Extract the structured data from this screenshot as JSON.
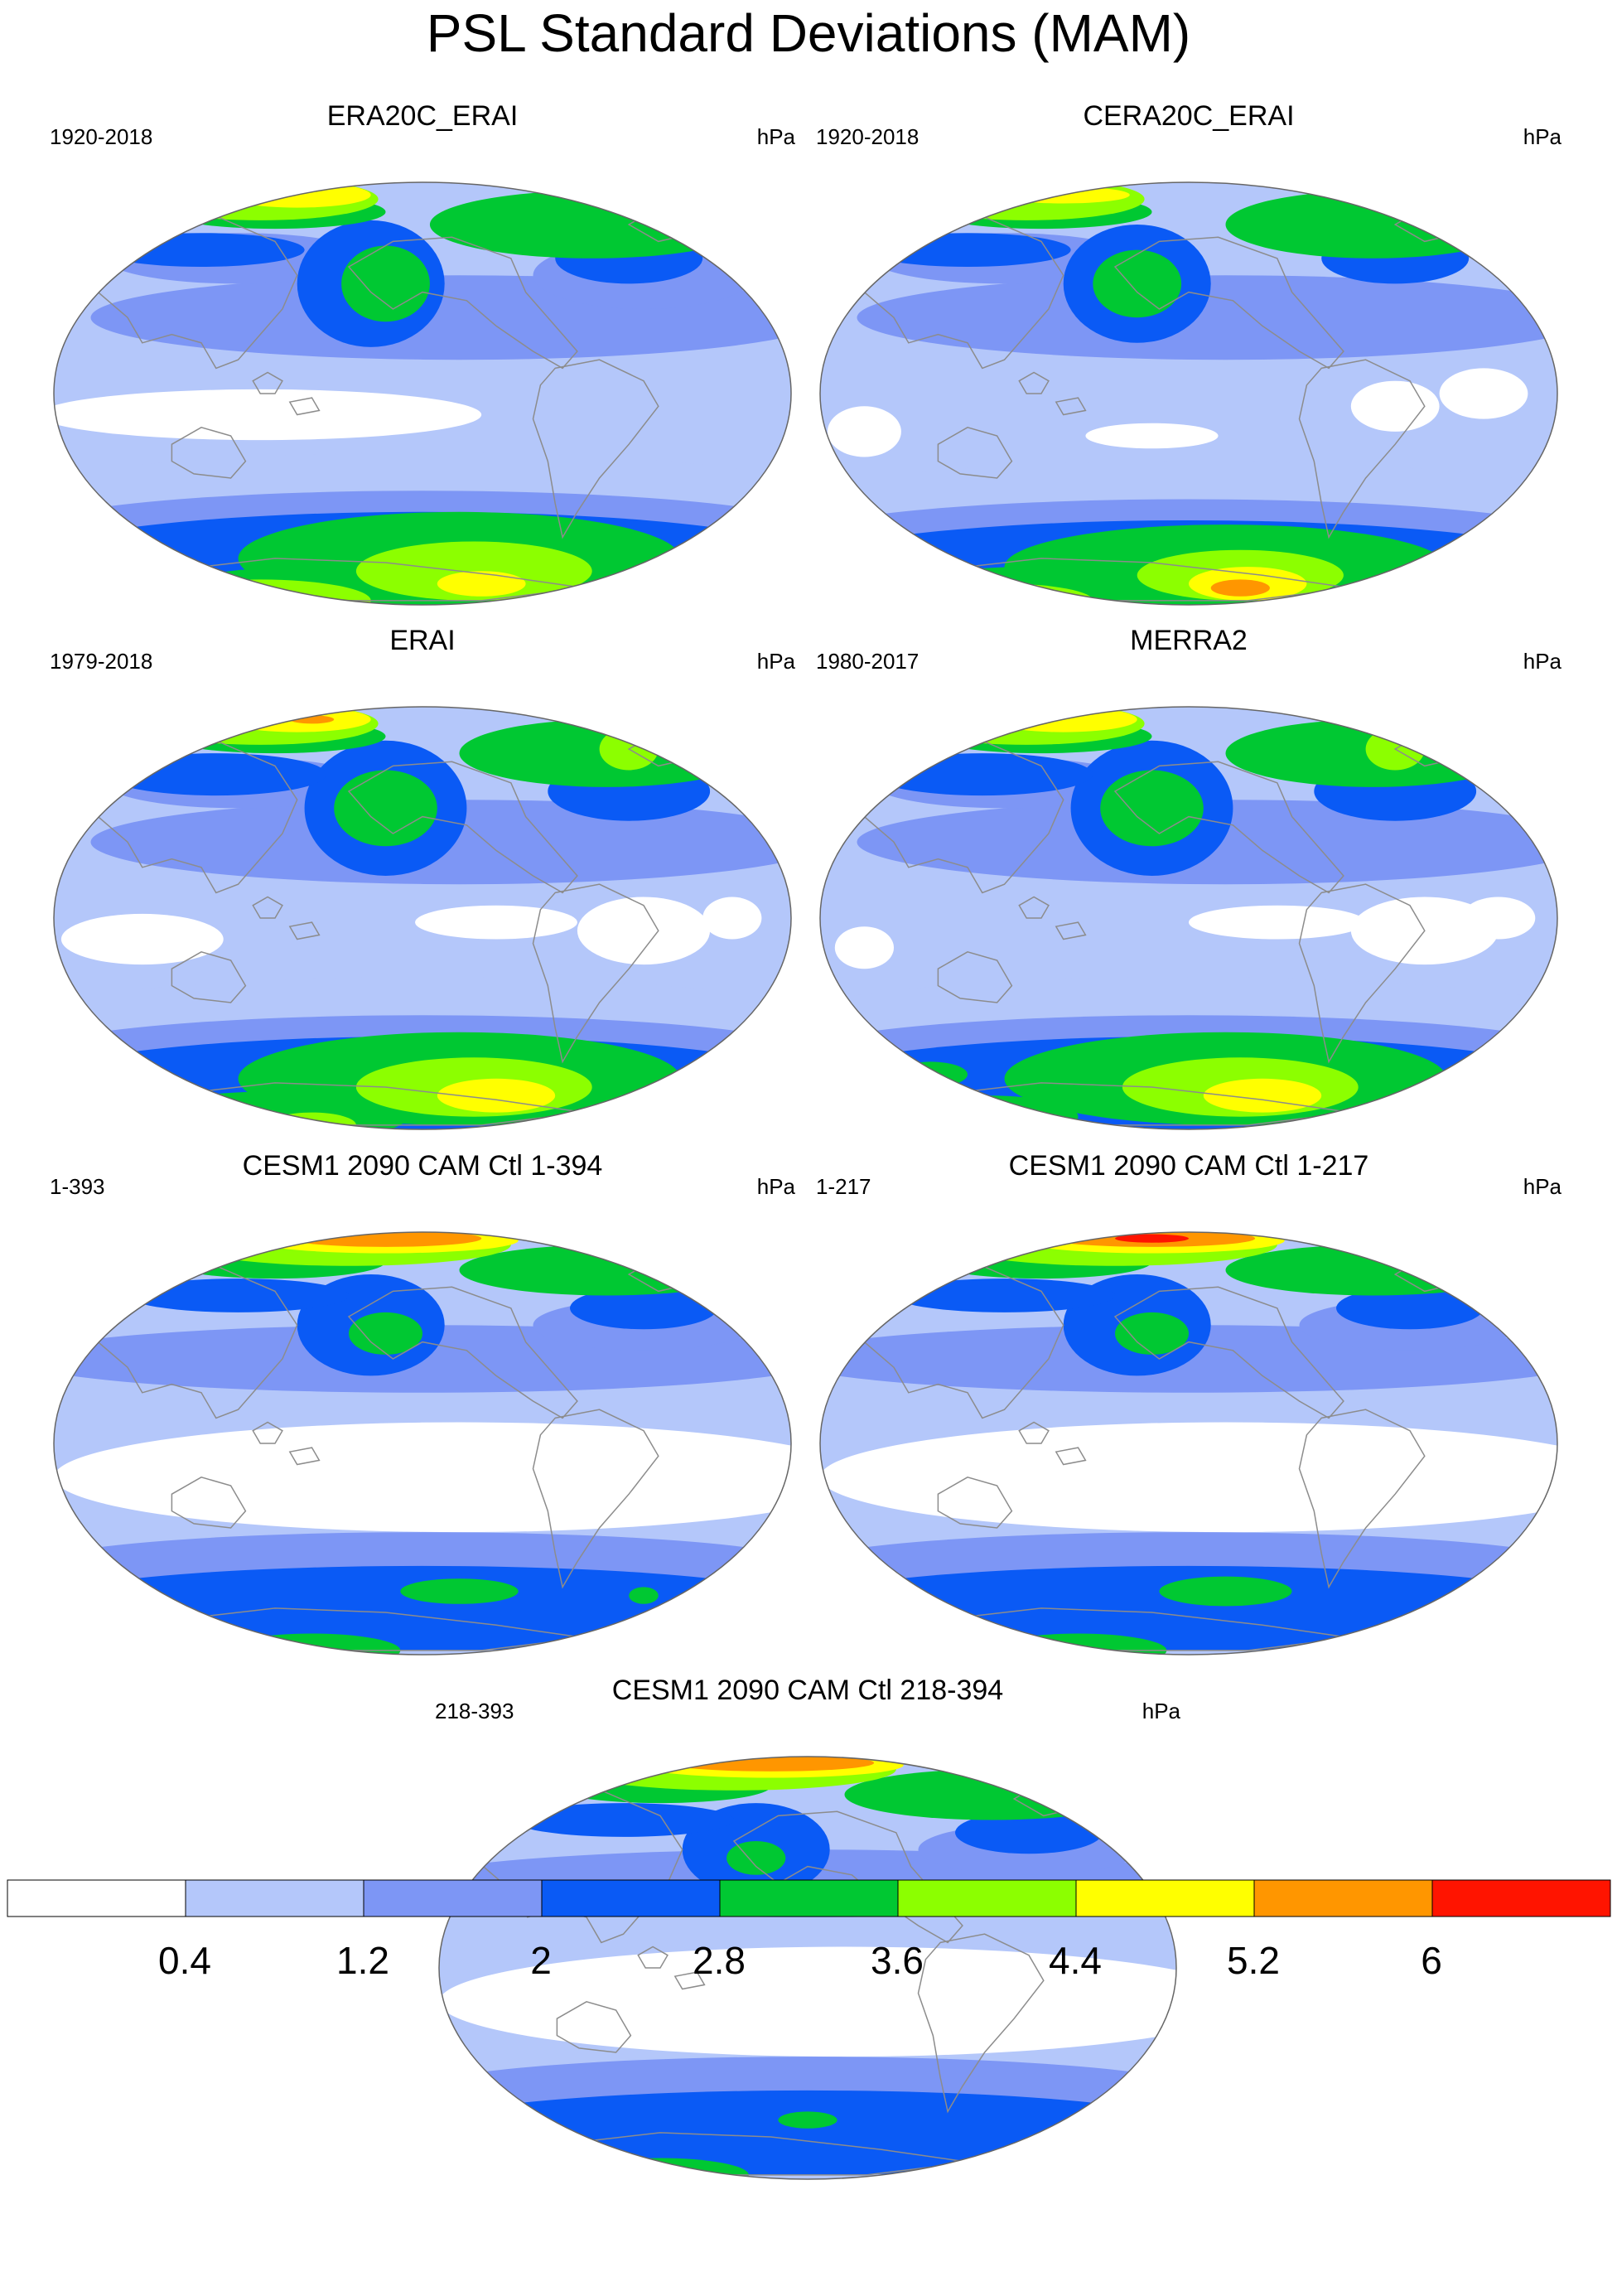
{
  "title": "PSL Standard Deviations (MAM)",
  "colors": [
    "#ffffff",
    "#b4c7fa",
    "#7d96f5",
    "#0a5af5",
    "#00c832",
    "#8cff00",
    "#ffff00",
    "#ff9600",
    "#ff1400"
  ],
  "coastline_color": "#8c8c8c",
  "panels": [
    {
      "title": "ERA20C_ERAI",
      "range": "1920-2018",
      "units": "hPa",
      "blobs": [
        [
          0,
          0.75,
          0.1,
          0.09,
          0.07
        ],
        [
          0,
          0.28,
          0.55,
          0.3,
          0.06
        ],
        [
          2,
          0.55,
          0.32,
          0.5,
          0.1
        ],
        [
          2,
          0.25,
          0.18,
          0.18,
          0.06
        ],
        [
          2,
          0.8,
          0.22,
          0.15,
          0.08
        ],
        [
          3,
          0.43,
          0.24,
          0.1,
          0.15
        ],
        [
          3,
          0.2,
          0.16,
          0.14,
          0.04
        ],
        [
          3,
          0.78,
          0.18,
          0.1,
          0.06
        ],
        [
          4,
          0.45,
          0.24,
          0.06,
          0.09
        ],
        [
          4,
          0.73,
          0.1,
          0.22,
          0.08
        ],
        [
          4,
          0.3,
          0.07,
          0.15,
          0.04
        ],
        [
          5,
          0.28,
          0.04,
          0.16,
          0.05
        ],
        [
          6,
          0.33,
          0.03,
          0.1,
          0.03
        ],
        [
          5,
          0.9,
          0.08,
          0.05,
          0.07
        ],
        [
          1,
          0.5,
          0.74,
          0.55,
          0.1
        ],
        [
          2,
          0.5,
          0.83,
          0.55,
          0.1
        ],
        [
          3,
          0.5,
          0.9,
          0.55,
          0.12
        ],
        [
          4,
          0.55,
          0.89,
          0.3,
          0.11
        ],
        [
          4,
          0.35,
          0.97,
          0.2,
          0.06
        ],
        [
          5,
          0.57,
          0.92,
          0.16,
          0.07
        ],
        [
          5,
          0.28,
          0.99,
          0.15,
          0.05
        ],
        [
          6,
          0.58,
          0.95,
          0.06,
          0.03
        ]
      ]
    },
    {
      "title": "CERA20C_ERAI",
      "range": "1920-2018",
      "units": "hPa",
      "blobs": [
        [
          0,
          0.06,
          0.59,
          0.05,
          0.06
        ],
        [
          0,
          0.45,
          0.6,
          0.09,
          0.03
        ],
        [
          0,
          0.78,
          0.53,
          0.06,
          0.06
        ],
        [
          0,
          0.9,
          0.5,
          0.06,
          0.06
        ],
        [
          2,
          0.55,
          0.32,
          0.5,
          0.1
        ],
        [
          2,
          0.25,
          0.18,
          0.18,
          0.06
        ],
        [
          3,
          0.43,
          0.24,
          0.1,
          0.14
        ],
        [
          3,
          0.2,
          0.16,
          0.14,
          0.04
        ],
        [
          3,
          0.78,
          0.18,
          0.1,
          0.06
        ],
        [
          4,
          0.43,
          0.24,
          0.06,
          0.08
        ],
        [
          4,
          0.75,
          0.1,
          0.2,
          0.08
        ],
        [
          4,
          0.3,
          0.07,
          0.15,
          0.04
        ],
        [
          5,
          0.28,
          0.04,
          0.16,
          0.05
        ],
        [
          6,
          0.33,
          0.03,
          0.09,
          0.02
        ],
        [
          1,
          0.5,
          0.76,
          0.55,
          0.1
        ],
        [
          2,
          0.5,
          0.85,
          0.55,
          0.1
        ],
        [
          3,
          0.5,
          0.92,
          0.55,
          0.12
        ],
        [
          4,
          0.55,
          0.91,
          0.3,
          0.1
        ],
        [
          4,
          0.28,
          0.97,
          0.18,
          0.06
        ],
        [
          5,
          0.57,
          0.93,
          0.14,
          0.06
        ],
        [
          5,
          0.25,
          0.99,
          0.12,
          0.04
        ],
        [
          6,
          0.58,
          0.95,
          0.08,
          0.04
        ],
        [
          7,
          0.57,
          0.96,
          0.04,
          0.02
        ]
      ]
    },
    {
      "title": "ERAI",
      "range": "1979-2018",
      "units": "hPa",
      "blobs": [
        [
          0,
          0.12,
          0.55,
          0.11,
          0.06
        ],
        [
          0,
          0.6,
          0.51,
          0.11,
          0.04
        ],
        [
          0,
          0.8,
          0.53,
          0.09,
          0.08
        ],
        [
          0,
          0.92,
          0.5,
          0.04,
          0.05
        ],
        [
          2,
          0.55,
          0.32,
          0.5,
          0.1
        ],
        [
          2,
          0.25,
          0.18,
          0.18,
          0.06
        ],
        [
          3,
          0.45,
          0.24,
          0.11,
          0.16
        ],
        [
          3,
          0.22,
          0.16,
          0.15,
          0.05
        ],
        [
          3,
          0.78,
          0.2,
          0.11,
          0.07
        ],
        [
          4,
          0.45,
          0.24,
          0.07,
          0.09
        ],
        [
          4,
          0.75,
          0.11,
          0.2,
          0.08
        ],
        [
          4,
          0.3,
          0.07,
          0.15,
          0.04
        ],
        [
          5,
          0.28,
          0.04,
          0.16,
          0.05
        ],
        [
          6,
          0.33,
          0.03,
          0.1,
          0.03
        ],
        [
          7,
          0.35,
          0.03,
          0.03,
          0.01
        ],
        [
          5,
          0.78,
          0.1,
          0.04,
          0.05
        ],
        [
          1,
          0.5,
          0.74,
          0.55,
          0.1
        ],
        [
          2,
          0.5,
          0.83,
          0.55,
          0.1
        ],
        [
          3,
          0.5,
          0.9,
          0.55,
          0.12
        ],
        [
          4,
          0.55,
          0.88,
          0.3,
          0.11
        ],
        [
          4,
          0.3,
          0.97,
          0.18,
          0.06
        ],
        [
          5,
          0.57,
          0.9,
          0.16,
          0.07
        ],
        [
          6,
          0.6,
          0.92,
          0.08,
          0.04
        ],
        [
          5,
          0.35,
          0.99,
          0.06,
          0.03
        ]
      ]
    },
    {
      "title": "MERRA2",
      "range": "1980-2017",
      "units": "hPa",
      "blobs": [
        [
          0,
          0.06,
          0.57,
          0.04,
          0.05
        ],
        [
          0,
          0.62,
          0.51,
          0.12,
          0.04
        ],
        [
          0,
          0.82,
          0.53,
          0.1,
          0.08
        ],
        [
          0,
          0.92,
          0.5,
          0.05,
          0.05
        ],
        [
          2,
          0.55,
          0.32,
          0.5,
          0.1
        ],
        [
          2,
          0.25,
          0.18,
          0.18,
          0.06
        ],
        [
          3,
          0.45,
          0.24,
          0.11,
          0.16
        ],
        [
          3,
          0.22,
          0.16,
          0.15,
          0.05
        ],
        [
          3,
          0.78,
          0.2,
          0.11,
          0.07
        ],
        [
          4,
          0.45,
          0.24,
          0.07,
          0.09
        ],
        [
          4,
          0.75,
          0.11,
          0.2,
          0.08
        ],
        [
          4,
          0.3,
          0.07,
          0.15,
          0.04
        ],
        [
          5,
          0.28,
          0.04,
          0.16,
          0.05
        ],
        [
          6,
          0.33,
          0.03,
          0.1,
          0.03
        ],
        [
          5,
          0.78,
          0.1,
          0.04,
          0.05
        ],
        [
          1,
          0.5,
          0.74,
          0.55,
          0.1
        ],
        [
          2,
          0.5,
          0.83,
          0.55,
          0.1
        ],
        [
          3,
          0.5,
          0.9,
          0.55,
          0.12
        ],
        [
          4,
          0.55,
          0.88,
          0.3,
          0.11
        ],
        [
          4,
          0.23,
          0.97,
          0.12,
          0.05
        ],
        [
          5,
          0.57,
          0.9,
          0.16,
          0.07
        ],
        [
          6,
          0.6,
          0.92,
          0.08,
          0.04
        ],
        [
          4,
          0.15,
          0.87,
          0.05,
          0.03
        ]
      ]
    },
    {
      "title": "CESM1 2090 CAM Ctl 1-394",
      "range": "1-393",
      "units": "hPa",
      "blobs": [
        [
          0,
          0.55,
          0.58,
          0.55,
          0.13
        ],
        [
          2,
          0.5,
          0.3,
          0.55,
          0.08
        ],
        [
          2,
          0.8,
          0.22,
          0.15,
          0.06
        ],
        [
          3,
          0.43,
          0.22,
          0.1,
          0.12
        ],
        [
          3,
          0.25,
          0.15,
          0.15,
          0.04
        ],
        [
          3,
          0.8,
          0.18,
          0.1,
          0.05
        ],
        [
          4,
          0.45,
          0.24,
          0.05,
          0.05
        ],
        [
          4,
          0.75,
          0.09,
          0.2,
          0.06
        ],
        [
          4,
          0.3,
          0.07,
          0.15,
          0.04
        ],
        [
          5,
          0.4,
          0.03,
          0.22,
          0.05
        ],
        [
          6,
          0.45,
          0.02,
          0.18,
          0.03
        ],
        [
          7,
          0.45,
          0.015,
          0.13,
          0.02
        ],
        [
          2,
          0.5,
          0.8,
          0.55,
          0.09
        ],
        [
          3,
          0.5,
          0.89,
          0.55,
          0.1
        ],
        [
          4,
          0.55,
          0.85,
          0.08,
          0.03
        ],
        [
          4,
          0.8,
          0.86,
          0.02,
          0.02
        ],
        [
          4,
          0.35,
          0.99,
          0.12,
          0.04
        ]
      ]
    },
    {
      "title": "CESM1 2090 CAM Ctl 1-217",
      "range": "1-217",
      "units": "hPa",
      "blobs": [
        [
          0,
          0.55,
          0.58,
          0.55,
          0.13
        ],
        [
          2,
          0.5,
          0.3,
          0.55,
          0.08
        ],
        [
          2,
          0.8,
          0.22,
          0.15,
          0.06
        ],
        [
          3,
          0.43,
          0.22,
          0.1,
          0.12
        ],
        [
          3,
          0.25,
          0.15,
          0.15,
          0.04
        ],
        [
          3,
          0.8,
          0.18,
          0.1,
          0.05
        ],
        [
          4,
          0.45,
          0.24,
          0.05,
          0.05
        ],
        [
          4,
          0.75,
          0.09,
          0.2,
          0.06
        ],
        [
          4,
          0.3,
          0.07,
          0.15,
          0.04
        ],
        [
          5,
          0.4,
          0.03,
          0.22,
          0.05
        ],
        [
          6,
          0.45,
          0.02,
          0.18,
          0.03
        ],
        [
          7,
          0.45,
          0.015,
          0.14,
          0.02
        ],
        [
          8,
          0.45,
          0.015,
          0.05,
          0.01
        ],
        [
          2,
          0.5,
          0.8,
          0.55,
          0.09
        ],
        [
          3,
          0.5,
          0.89,
          0.55,
          0.1
        ],
        [
          4,
          0.55,
          0.85,
          0.09,
          0.035
        ],
        [
          4,
          0.35,
          0.99,
          0.12,
          0.04
        ]
      ]
    },
    {
      "title": "CESM1 2090 CAM Ctl 218-394",
      "range": "218-393",
      "units": "hPa",
      "blobs": [
        [
          0,
          0.55,
          0.58,
          0.55,
          0.13
        ],
        [
          2,
          0.5,
          0.3,
          0.55,
          0.08
        ],
        [
          2,
          0.8,
          0.22,
          0.15,
          0.06
        ],
        [
          3,
          0.43,
          0.22,
          0.1,
          0.11
        ],
        [
          3,
          0.25,
          0.15,
          0.15,
          0.04
        ],
        [
          3,
          0.8,
          0.18,
          0.1,
          0.05
        ],
        [
          4,
          0.43,
          0.24,
          0.04,
          0.04
        ],
        [
          4,
          0.75,
          0.09,
          0.2,
          0.06
        ],
        [
          4,
          0.3,
          0.07,
          0.15,
          0.04
        ],
        [
          5,
          0.4,
          0.03,
          0.22,
          0.05
        ],
        [
          6,
          0.45,
          0.02,
          0.18,
          0.03
        ],
        [
          7,
          0.45,
          0.015,
          0.14,
          0.02
        ],
        [
          2,
          0.5,
          0.8,
          0.55,
          0.09
        ],
        [
          3,
          0.5,
          0.89,
          0.55,
          0.1
        ],
        [
          4,
          0.5,
          0.86,
          0.04,
          0.02
        ],
        [
          4,
          0.3,
          0.99,
          0.12,
          0.04
        ]
      ]
    }
  ],
  "colorbar": {
    "labels": [
      "0.4",
      "1.2",
      "2",
      "2.8",
      "3.6",
      "4.4",
      "5.2",
      "6"
    ],
    "colors": [
      "#ffffff",
      "#b4c7fa",
      "#7d96f5",
      "#0a5af5",
      "#00c832",
      "#8cff00",
      "#ffff00",
      "#ff9600",
      "#ff1400"
    ]
  }
}
